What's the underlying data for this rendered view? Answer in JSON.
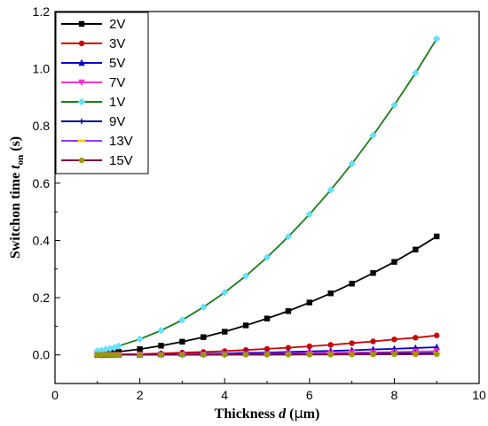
{
  "chart_data": {
    "type": "line",
    "xlabel_parts": [
      "Thickness ",
      "d",
      " (",
      "μ",
      "m)"
    ],
    "ylabel_parts": [
      "Switchon time ",
      "t",
      "on",
      " (s)"
    ],
    "xlim": [
      0,
      10
    ],
    "ylim": [
      -0.1,
      1.2
    ],
    "xticks": [
      0,
      2,
      4,
      6,
      8,
      10
    ],
    "yticks": [
      0.0,
      0.2,
      0.4,
      0.6,
      0.8,
      1.0,
      1.2
    ],
    "ytick_labels": [
      "0.0",
      "0.2",
      "0.4",
      "0.6",
      "0.8",
      "1.0",
      "1.2"
    ],
    "legend_position": "top-left",
    "grid": false,
    "x": [
      1.0,
      1.1,
      1.2,
      1.3,
      1.4,
      1.5,
      2.0,
      2.5,
      3.0,
      3.5,
      4.0,
      4.5,
      5.0,
      5.5,
      6.0,
      6.5,
      7.0,
      7.5,
      8.0,
      8.5,
      9.0
    ],
    "series": [
      {
        "name": "2V",
        "color": "#000000",
        "marker": "square",
        "values": [
          0.006,
          0.007,
          0.008,
          0.009,
          0.01,
          0.011,
          0.02,
          0.032,
          0.046,
          0.062,
          0.081,
          0.103,
          0.127,
          0.153,
          0.183,
          0.215,
          0.249,
          0.286,
          0.325,
          0.368,
          0.414
        ]
      },
      {
        "name": "3V",
        "color": "#cc0000",
        "marker": "circle",
        "values": [
          0.001,
          0.001,
          0.001,
          0.001,
          0.001,
          0.002,
          0.003,
          0.005,
          0.008,
          0.01,
          0.013,
          0.017,
          0.021,
          0.025,
          0.03,
          0.035,
          0.041,
          0.047,
          0.054,
          0.06,
          0.068
        ]
      },
      {
        "name": "5V",
        "color": "#0000cc",
        "marker": "triangle-up",
        "values": [
          0.0003,
          0.0004,
          0.0005,
          0.0006,
          0.0007,
          0.0008,
          0.001,
          0.002,
          0.003,
          0.004,
          0.005,
          0.007,
          0.008,
          0.01,
          0.012,
          0.014,
          0.016,
          0.019,
          0.021,
          0.024,
          0.027
        ]
      },
      {
        "name": "7V",
        "color": "#ff33cc",
        "marker": "triangle-down",
        "values": [
          0.0002,
          0.0002,
          0.0003,
          0.0003,
          0.0004,
          0.0004,
          0.001,
          0.001,
          0.002,
          0.002,
          0.003,
          0.003,
          0.004,
          0.005,
          0.006,
          0.007,
          0.008,
          0.009,
          0.01,
          0.012,
          0.013
        ]
      },
      {
        "name": "1V",
        "color": "#1a7a1a",
        "marker": "diamond",
        "marker_color": "#66e0ff",
        "values": [
          0.014,
          0.016,
          0.019,
          0.022,
          0.025,
          0.031,
          0.055,
          0.085,
          0.122,
          0.167,
          0.218,
          0.276,
          0.341,
          0.413,
          0.491,
          0.576,
          0.668,
          0.767,
          0.873,
          0.985,
          1.105
        ]
      },
      {
        "name": "9V",
        "color": "#000080",
        "marker": "star",
        "values": [
          0.0001,
          0.0001,
          0.0001,
          0.0002,
          0.0002,
          0.0002,
          0.0003,
          0.0005,
          0.0008,
          0.001,
          0.001,
          0.002,
          0.002,
          0.003,
          0.003,
          0.004,
          0.004,
          0.005,
          0.006,
          0.006,
          0.007
        ]
      },
      {
        "name": "13V",
        "color": "#9933ff",
        "marker": "dash",
        "marker_color": "#ffcc00",
        "values": [
          0.0001,
          0.0001,
          0.0001,
          0.0001,
          0.0001,
          0.0001,
          0.0002,
          0.0003,
          0.0004,
          0.0005,
          0.0007,
          0.0009,
          0.001,
          0.001,
          0.002,
          0.002,
          0.002,
          0.003,
          0.003,
          0.003,
          0.004
        ]
      },
      {
        "name": "15V",
        "color": "#800040",
        "marker": "circle",
        "marker_color": "#999900",
        "values": [
          5e-05,
          6e-05,
          7e-05,
          8e-05,
          0.0001,
          0.0001,
          0.0002,
          0.0002,
          0.0003,
          0.0004,
          0.0005,
          0.0006,
          0.0007,
          0.0009,
          0.001,
          0.001,
          0.0015,
          0.0017,
          0.002,
          0.0022,
          0.0025
        ]
      }
    ]
  }
}
